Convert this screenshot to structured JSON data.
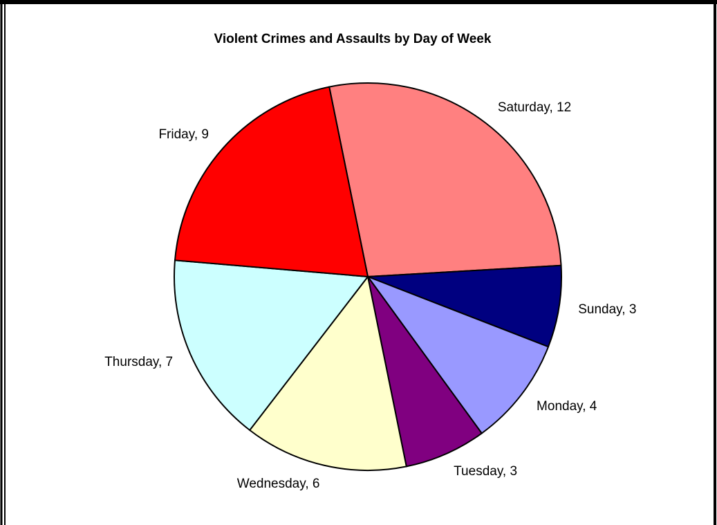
{
  "chart_data": {
    "type": "pie",
    "title": "Violent Crimes and Assaults by Day of Week",
    "labels": [
      "Saturday, 12",
      "Sunday, 3",
      "Monday, 4",
      "Tuesday, 3",
      "Wednesday, 6",
      "Thursday, 7",
      "Friday, 9"
    ],
    "values": [
      12,
      3,
      4,
      3,
      6,
      7,
      9
    ],
    "colors": [
      "#ff8080",
      "#000080",
      "#9999ff",
      "#800080",
      "#ffffcc",
      "#ccffff",
      "#ff0000"
    ]
  }
}
